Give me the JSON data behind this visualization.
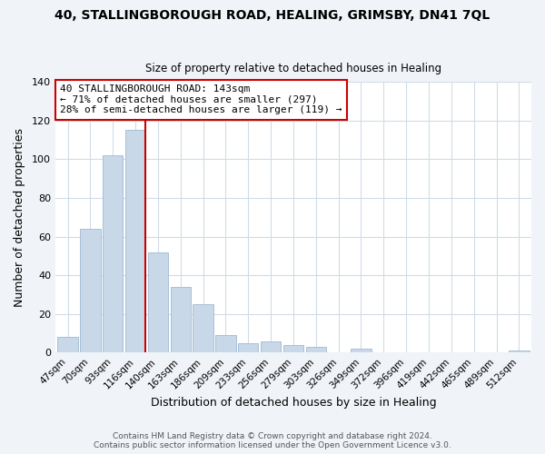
{
  "title": "40, STALLINGBOROUGH ROAD, HEALING, GRIMSBY, DN41 7QL",
  "subtitle": "Size of property relative to detached houses in Healing",
  "xlabel": "Distribution of detached houses by size in Healing",
  "ylabel": "Number of detached properties",
  "footer_line1": "Contains HM Land Registry data © Crown copyright and database right 2024.",
  "footer_line2": "Contains public sector information licensed under the Open Government Licence v3.0.",
  "bin_labels": [
    "47sqm",
    "70sqm",
    "93sqm",
    "116sqm",
    "140sqm",
    "163sqm",
    "186sqm",
    "209sqm",
    "233sqm",
    "256sqm",
    "279sqm",
    "303sqm",
    "326sqm",
    "349sqm",
    "372sqm",
    "396sqm",
    "419sqm",
    "442sqm",
    "465sqm",
    "489sqm",
    "512sqm"
  ],
  "bar_heights": [
    8,
    64,
    102,
    115,
    52,
    34,
    25,
    9,
    5,
    6,
    4,
    3,
    0,
    2,
    0,
    0,
    0,
    0,
    0,
    0,
    1
  ],
  "bar_color": "#c8d8e8",
  "bar_edgecolor": "#a8c0d8",
  "vline_color": "#cc0000",
  "vline_index": 3,
  "annotation_text": "40 STALLINGBOROUGH ROAD: 143sqm\n← 71% of detached houses are smaller (297)\n28% of semi-detached houses are larger (119) →",
  "annotation_box_edgecolor": "#cc0000",
  "annotation_box_facecolor": "#ffffff",
  "ylim": [
    0,
    140
  ],
  "yticks": [
    0,
    20,
    40,
    60,
    80,
    100,
    120,
    140
  ],
  "grid_color": "#d0dce8",
  "background_color": "#ffffff",
  "fig_background_color": "#f0f4f8"
}
